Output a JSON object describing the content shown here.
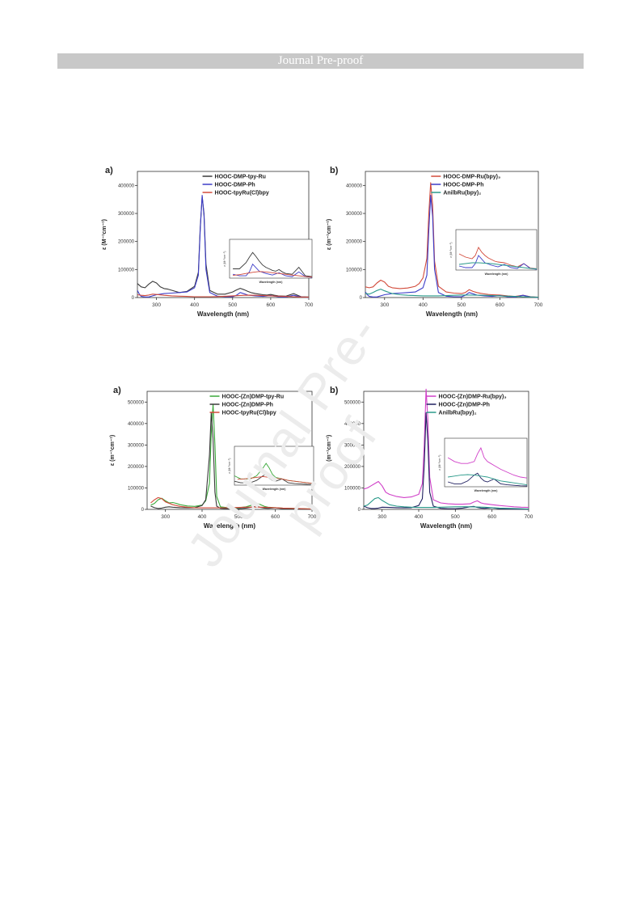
{
  "header": {
    "banner": "Journal Pre-proof"
  },
  "watermark": "Journal Pre-proof",
  "colors": {
    "black": "#3a3a3a",
    "blue": "#3c3cc8",
    "red": "#d24a3a",
    "teal": "#2a9a8a",
    "green": "#3aa83a",
    "magenta": "#d040c8",
    "navy": "#202060"
  },
  "chart_data": [
    {
      "type": "line",
      "panel_label": "a)",
      "xlabel": "Wavelength (nm)",
      "ylabel": "ε (M⁻¹cm⁻¹)",
      "xlim": [
        250,
        700
      ],
      "ylim": [
        0,
        450000
      ],
      "xticks": [
        300,
        400,
        500,
        600,
        700
      ],
      "yticks": [
        0,
        100000,
        200000,
        300000,
        400000
      ],
      "legend": "top-right",
      "inset": {
        "xlabel": "Wavelength (nm)",
        "ylabel": "ε (M⁻¹cm⁻¹)",
        "xlim": [
          450,
          700
        ],
        "ylim": [
          0,
          50000
        ]
      },
      "series": [
        {
          "name": "HOOC-DMP-tpy-Ru",
          "color": "#3a3a3a",
          "x": [
            250,
            260,
            270,
            280,
            290,
            300,
            310,
            320,
            330,
            340,
            350,
            360,
            380,
            400,
            410,
            415,
            420,
            425,
            430,
            440,
            460,
            480,
            500,
            510,
            520,
            530,
            540,
            550,
            560,
            570,
            580,
            590,
            600,
            610,
            620,
            640,
            660,
            680,
            700
          ],
          "y": [
            50000,
            38000,
            35000,
            48000,
            58000,
            52000,
            38000,
            32000,
            30000,
            26000,
            22000,
            18000,
            22000,
            40000,
            90000,
            250000,
            360000,
            300000,
            120000,
            25000,
            12000,
            12000,
            20000,
            27000,
            33000,
            28000,
            22000,
            17000,
            14000,
            12000,
            10000,
            9000,
            11000,
            8000,
            6000,
            5000,
            14000,
            3000,
            2000
          ]
        },
        {
          "name": "HOOC-DMP-Ph",
          "color": "#3c3cc8",
          "x": [
            250,
            255,
            260,
            270,
            280,
            290,
            300,
            320,
            340,
            360,
            380,
            400,
            410,
            415,
            420,
            425,
            430,
            440,
            460,
            480,
            500,
            510,
            520,
            540,
            560,
            580,
            600,
            620,
            640,
            660,
            680,
            700
          ],
          "y": [
            25000,
            12000,
            4000,
            2000,
            2000,
            6000,
            10000,
            14000,
            16000,
            18000,
            20000,
            35000,
            80000,
            240000,
            365000,
            290000,
            100000,
            18000,
            5000,
            3000,
            3000,
            8000,
            18000,
            9000,
            6000,
            4000,
            7000,
            3000,
            2000,
            8000,
            2000,
            1000
          ]
        },
        {
          "name": "HOOC-tpyRu(Cl)bpy",
          "color": "#d24a3a",
          "x": [
            250,
            260,
            270,
            280,
            290,
            300,
            320,
            340,
            360,
            380,
            400,
            420,
            440,
            460,
            480,
            500,
            520,
            540,
            560,
            580,
            600,
            620,
            640,
            660,
            680,
            700
          ],
          "y": [
            10000,
            8000,
            7000,
            9000,
            12000,
            11000,
            8000,
            6000,
            5000,
            4000,
            3000,
            3000,
            3000,
            3500,
            4500,
            6000,
            7500,
            8500,
            8000,
            7000,
            6000,
            5000,
            4000,
            3000,
            2000,
            1500
          ]
        }
      ]
    },
    {
      "type": "line",
      "panel_label": "b)",
      "xlabel": "Wavelength (nm)",
      "ylabel": "ε (m⁻¹cm⁻¹)",
      "xlim": [
        250,
        700
      ],
      "ylim": [
        0,
        450000
      ],
      "xticks": [
        300,
        400,
        500,
        600,
        700
      ],
      "yticks": [
        0,
        100000,
        200000,
        300000,
        400000
      ],
      "legend": "top-right",
      "inset": {
        "xlabel": "Wavelength (nm)",
        "ylabel": "ε (M⁻¹cm⁻¹)",
        "xlim": [
          450,
          700
        ],
        "ylim": [
          0,
          50000
        ]
      },
      "series": [
        {
          "name": "HOOC-DMP-Ru(bpy)₃",
          "color": "#d24a3a",
          "x": [
            250,
            260,
            270,
            280,
            290,
            300,
            310,
            320,
            340,
            360,
            380,
            390,
            400,
            410,
            415,
            420,
            425,
            430,
            440,
            460,
            480,
            500,
            510,
            520,
            530,
            540,
            550,
            560,
            570,
            580,
            600,
            620,
            640,
            660,
            680,
            700
          ],
          "y": [
            38000,
            35000,
            38000,
            52000,
            62000,
            55000,
            40000,
            35000,
            32000,
            34000,
            40000,
            50000,
            70000,
            140000,
            300000,
            410000,
            330000,
            130000,
            40000,
            20000,
            16000,
            14000,
            18000,
            28000,
            22000,
            18000,
            15000,
            13000,
            11000,
            10000,
            9000,
            6000,
            4000,
            8000,
            2500,
            1500
          ]
        },
        {
          "name": "HOOC-DMP-Ph",
          "color": "#3c3cc8",
          "x": [
            250,
            255,
            260,
            270,
            280,
            290,
            300,
            320,
            340,
            360,
            380,
            400,
            410,
            415,
            420,
            425,
            430,
            440,
            460,
            480,
            500,
            510,
            520,
            540,
            560,
            580,
            600,
            620,
            640,
            660,
            680,
            700
          ],
          "y": [
            20000,
            10000,
            4000,
            2000,
            2000,
            6000,
            10000,
            14000,
            16000,
            18000,
            20000,
            35000,
            80000,
            240000,
            365000,
            290000,
            100000,
            18000,
            5000,
            3000,
            3000,
            8000,
            18000,
            9000,
            6000,
            4000,
            7000,
            3000,
            2000,
            8000,
            2000,
            1000
          ]
        },
        {
          "name": "AnilbRu(bpy)₂",
          "color": "#2a9a8a",
          "x": [
            250,
            260,
            270,
            280,
            290,
            300,
            320,
            340,
            360,
            380,
            400,
            420,
            440,
            460,
            480,
            500,
            520,
            540,
            560,
            580,
            600,
            620,
            640,
            660,
            680,
            700
          ],
          "y": [
            15000,
            12000,
            18000,
            25000,
            30000,
            24000,
            14000,
            10000,
            8000,
            7000,
            6000,
            6000,
            6000,
            7000,
            8000,
            9000,
            9000,
            8500,
            8000,
            7000,
            6000,
            5000,
            4000,
            3000,
            2000,
            1500
          ]
        }
      ]
    },
    {
      "type": "line",
      "panel_label": "a)",
      "xlabel": "Wavelength (nm)",
      "ylabel": "ε (m⁻¹cm⁻¹)",
      "xlim": [
        250,
        700
      ],
      "ylim": [
        0,
        550000
      ],
      "xticks": [
        300,
        400,
        500,
        600,
        700
      ],
      "yticks": [
        0,
        100000,
        200000,
        300000,
        400000,
        500000
      ],
      "legend": "top-right",
      "inset": {
        "xlabel": "Wavelength (nm)",
        "ylabel": "ε (M⁻¹cm⁻¹)",
        "xlim": [
          450,
          700
        ],
        "ylim": [
          0,
          50000
        ]
      },
      "series": [
        {
          "name": "HOOC-(Zn)DMP-tpy-Ru",
          "color": "#3aa83a",
          "x": [
            260,
            270,
            280,
            290,
            300,
            310,
            320,
            330,
            340,
            360,
            380,
            400,
            410,
            420,
            425,
            430,
            435,
            440,
            450,
            470,
            500,
            520,
            540,
            550,
            560,
            570,
            580,
            600,
            620,
            640,
            660,
            680,
            700
          ],
          "y": [
            20000,
            28000,
            45000,
            52000,
            40000,
            30000,
            32000,
            28000,
            22000,
            16000,
            14000,
            20000,
            40000,
            120000,
            350000,
            490000,
            300000,
            60000,
            12000,
            8000,
            8000,
            12000,
            22000,
            28000,
            22000,
            14000,
            10000,
            8000,
            6000,
            5000,
            4000,
            3000,
            2000
          ]
        },
        {
          "name": "HOOC-(Zn)DMP-Ph",
          "color": "#3a3a3a",
          "x": [
            260,
            270,
            280,
            290,
            300,
            310,
            320,
            340,
            360,
            380,
            400,
            410,
            420,
            425,
            430,
            435,
            440,
            450,
            470,
            500,
            520,
            540,
            550,
            560,
            570,
            580,
            600,
            620,
            640,
            660,
            680,
            700
          ],
          "y": [
            15000,
            8000,
            4000,
            6000,
            10000,
            12000,
            10000,
            8000,
            7000,
            8000,
            18000,
            45000,
            250000,
            450000,
            330000,
            80000,
            15000,
            5000,
            3000,
            3000,
            6000,
            12000,
            14000,
            9000,
            6000,
            5000,
            8000,
            3000,
            2000,
            1500,
            1000,
            800
          ]
        },
        {
          "name": "HOOC-tpyRu(Cl)bpy",
          "color": "#d24a3a",
          "x": [
            260,
            270,
            280,
            290,
            300,
            320,
            340,
            360,
            380,
            400,
            420,
            440,
            460,
            480,
            500,
            520,
            540,
            560,
            580,
            600,
            620,
            640,
            660,
            680,
            700
          ],
          "y": [
            30000,
            45000,
            55000,
            50000,
            35000,
            22000,
            14000,
            10000,
            8000,
            7000,
            7000,
            7000,
            7500,
            8000,
            9000,
            10000,
            11000,
            10000,
            9000,
            8000,
            6000,
            5000,
            4000,
            3000,
            2000
          ]
        }
      ]
    },
    {
      "type": "line",
      "panel_label": "b)",
      "xlabel": "Wavelength (nm)",
      "ylabel": "ε (m⁻¹cm⁻¹)",
      "xlim": [
        250,
        700
      ],
      "ylim": [
        0,
        550000
      ],
      "xticks": [
        300,
        400,
        500,
        600,
        700
      ],
      "yticks": [
        0,
        100000,
        200000,
        300000,
        400000,
        500000
      ],
      "legend": "top-right",
      "inset": {
        "xlabel": "Wavelength (nm)",
        "ylabel": "ε (M⁻¹cm⁻¹)",
        "xlim": [
          450,
          700
        ],
        "ylim": [
          0,
          50000
        ]
      },
      "series": [
        {
          "name": "HOOC-(Zn)DMP-Ru(bpy)₃",
          "color": "#d040c8",
          "x": [
            250,
            260,
            270,
            280,
            290,
            300,
            310,
            320,
            340,
            360,
            380,
            400,
            410,
            415,
            420,
            425,
            430,
            440,
            460,
            480,
            500,
            520,
            540,
            550,
            560,
            570,
            580,
            590,
            600,
            620,
            640,
            660,
            680,
            700
          ],
          "y": [
            95000,
            100000,
            110000,
            120000,
            130000,
            110000,
            80000,
            70000,
            60000,
            55000,
            58000,
            70000,
            120000,
            300000,
            560000,
            420000,
            150000,
            45000,
            30000,
            26000,
            24000,
            24000,
            26000,
            34000,
            40000,
            30000,
            26000,
            24000,
            22000,
            18000,
            15000,
            12000,
            10000,
            9000
          ]
        },
        {
          "name": "HOOC-(Zn)DMP-Ph",
          "color": "#202060",
          "x": [
            250,
            260,
            270,
            280,
            290,
            300,
            320,
            340,
            360,
            380,
            400,
            410,
            415,
            420,
            425,
            430,
            440,
            460,
            480,
            500,
            520,
            540,
            550,
            560,
            570,
            580,
            600,
            620,
            640,
            660,
            680,
            700
          ],
          "y": [
            15000,
            8000,
            4000,
            4000,
            6000,
            10000,
            9000,
            8000,
            7000,
            8000,
            18000,
            50000,
            200000,
            450000,
            320000,
            80000,
            15000,
            5000,
            3000,
            3000,
            6000,
            12000,
            14000,
            9000,
            6000,
            5000,
            8000,
            3000,
            2000,
            1500,
            1000,
            800
          ]
        },
        {
          "name": "AnilbRu(bpy)₂",
          "color": "#2a9a8a",
          "x": [
            250,
            260,
            270,
            280,
            290,
            300,
            320,
            340,
            360,
            380,
            400,
            420,
            440,
            460,
            480,
            500,
            520,
            540,
            560,
            580,
            600,
            620,
            640,
            660,
            680,
            700
          ],
          "y": [
            15000,
            20000,
            35000,
            50000,
            55000,
            42000,
            22000,
            15000,
            12000,
            10000,
            9000,
            9000,
            9000,
            10000,
            11000,
            12000,
            12500,
            12000,
            11000,
            10000,
            8000,
            6000,
            5000,
            4000,
            3000,
            2000
          ]
        }
      ]
    }
  ]
}
